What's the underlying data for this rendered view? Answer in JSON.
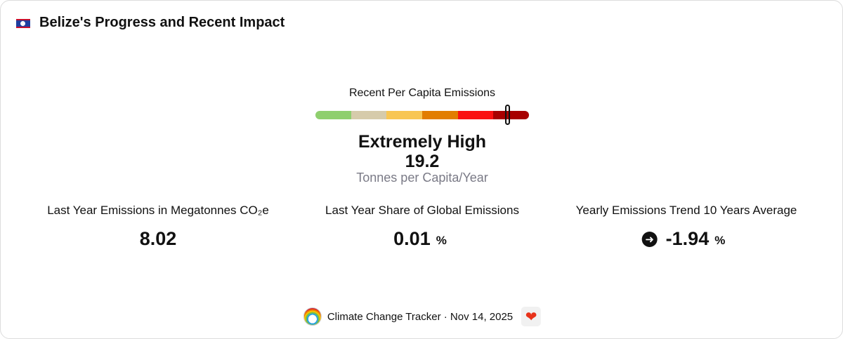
{
  "header": {
    "title": "Belize's Progress and Recent Impact"
  },
  "gauge": {
    "label": "Recent Per Capita Emissions",
    "rating": "Extremely High",
    "value": 19.2,
    "unit": "Tonnes per Capita/Year"
  },
  "stats": [
    {
      "label": "Last Year Emissions in Megatonnes CO₂e",
      "value": 8.02
    },
    {
      "label": "Last Year Share of Global Emissions",
      "value": 0.01,
      "unit": "%"
    },
    {
      "label": "Yearly Emissions Trend 10 Years Average",
      "value": -1.94,
      "unit": "%"
    }
  ],
  "footer": {
    "source": "Climate Change Tracker · Nov 14, 2025"
  }
}
